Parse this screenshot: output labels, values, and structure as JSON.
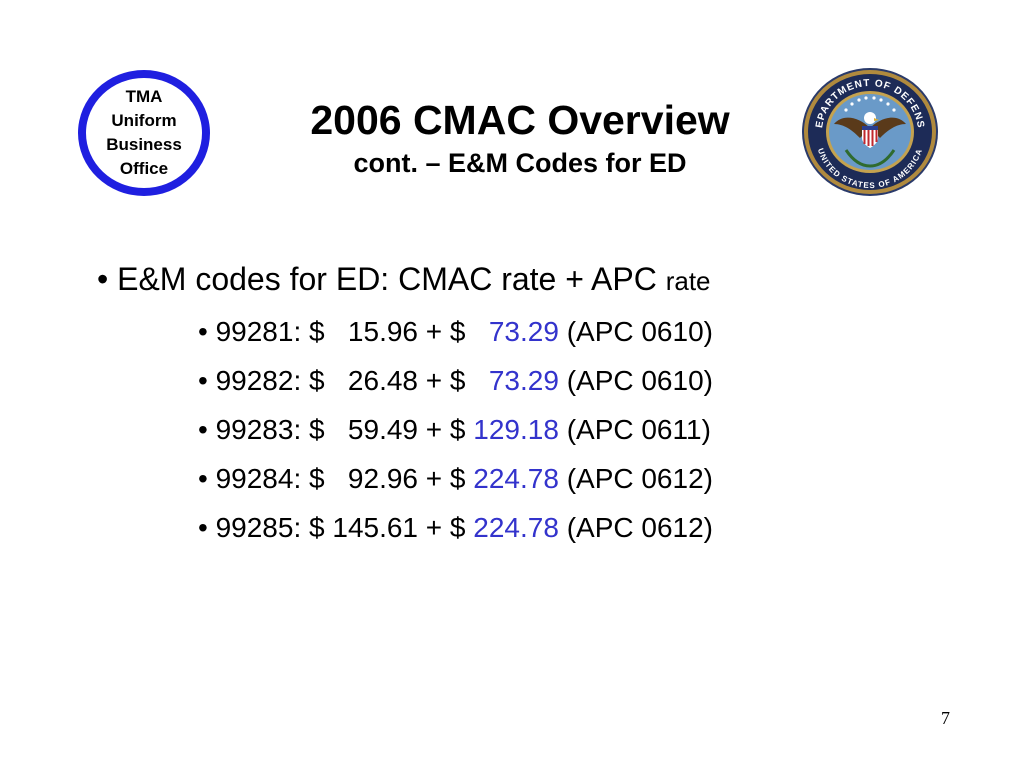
{
  "logo_left": {
    "lines": [
      "TMA",
      "Uniform",
      "Business",
      "Office"
    ],
    "ring_color": "#1f1fe0"
  },
  "logo_right": {
    "icon": "dod-seal-icon",
    "text": "DEPARTMENT OF DEFENSE · UNITED STATES OF AMERICA"
  },
  "title": "2006 CMAC Overview",
  "subtitle": "cont. – E&M Codes for ED",
  "main_bullet": {
    "marker": "•",
    "text": "E&M codes for ED: CMAC rate + APC",
    "text_small": "rate"
  },
  "rows": [
    {
      "code": "99281:",
      "cmac": "$   15.96",
      "plus": "+ $",
      "apc_rate": "  73.29",
      "apc": "(APC 0610)"
    },
    {
      "code": "99282:",
      "cmac": "$   26.48",
      "plus": "+ $",
      "apc_rate": "  73.29",
      "apc": "(APC 0610)"
    },
    {
      "code": "99283:",
      "cmac": "$   59.49",
      "plus": "+ $",
      "apc_rate": "129.18",
      "apc": "(APC 0611)"
    },
    {
      "code": "99284:",
      "cmac": "$   92.96",
      "plus": "+ $",
      "apc_rate": "224.78",
      "apc": "(APC 0612)"
    },
    {
      "code": "99285:",
      "cmac": "$ 145.61",
      "plus": "+ $",
      "apc_rate": "224.78",
      "apc": "(APC 0612)"
    }
  ],
  "sub_marker": "•",
  "page_number": "7",
  "colors": {
    "accent_blue": "#3333cc",
    "text": "#000000",
    "background": "#ffffff"
  }
}
